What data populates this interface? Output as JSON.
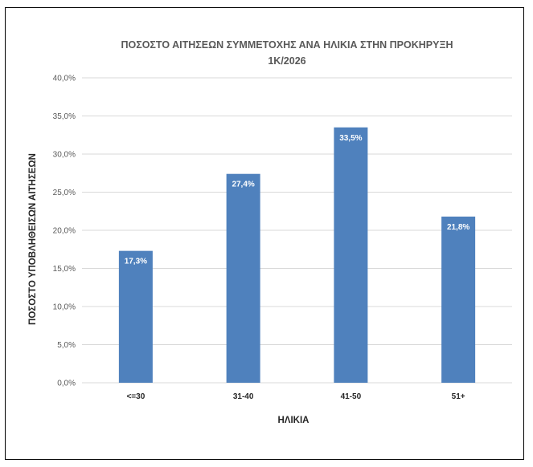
{
  "chart_data": {
    "type": "bar",
    "title_line1": "ΠΟΣΟΣΤΟ ΑΙΤΗΣΕΩΝ ΣΥΜΜΕΤΟΧΗΣ ΑΝΑ ΗΛΙΚΙΑ ΣΤΗΝ ΠΡΟΚΗΡΥΞΗ",
    "title_line2": "1Κ/2026",
    "xlabel": "ΗΛΙΚΙΑ",
    "ylabel": "ΠΟΣΟΣΤΟ ΥΠΟΒΛΗΘΕΙΣΩΝ ΑΙΤΗΣΕΩΝ",
    "categories": [
      "<=30",
      "31-40",
      "41-50",
      "51+"
    ],
    "values": [
      17.3,
      27.4,
      33.5,
      21.8
    ],
    "data_labels": [
      "17,3%",
      "27,4%",
      "33,5%",
      "21,8%"
    ],
    "ylim": [
      0,
      40
    ],
    "yticks": [
      0,
      5,
      10,
      15,
      20,
      25,
      30,
      35,
      40
    ],
    "ytick_labels": [
      "0,0%",
      "5,0%",
      "10,0%",
      "15,0%",
      "20,0%",
      "25,0%",
      "30,0%",
      "35,0%",
      "40,0%"
    ],
    "grid": true,
    "bar_color": "#4F81BD",
    "grid_color": "#D9D9D9"
  }
}
